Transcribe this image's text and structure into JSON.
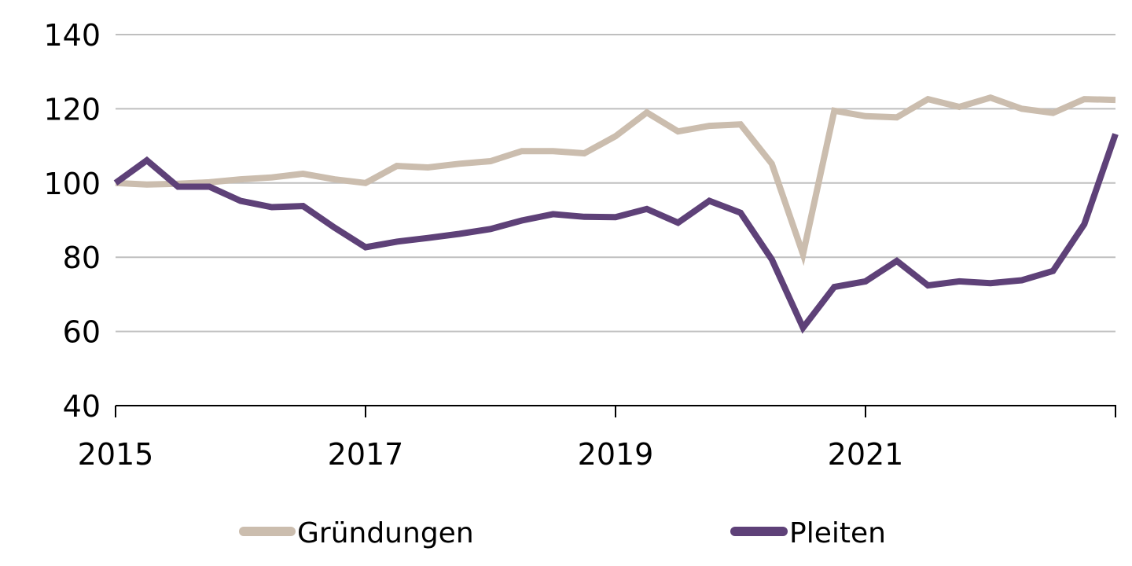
{
  "chart_data": {
    "type": "line",
    "title": "",
    "xlabel": "",
    "ylabel": "",
    "xlim": [
      2015,
      2023
    ],
    "ylim": [
      40,
      140
    ],
    "grid": true,
    "legend_position": "bottom",
    "y_ticks": [
      {
        "value": 40,
        "label": "40"
      },
      {
        "value": 60,
        "label": "60"
      },
      {
        "value": 80,
        "label": "80"
      },
      {
        "value": 100,
        "label": "100"
      },
      {
        "value": 120,
        "label": "120"
      },
      {
        "value": 140,
        "label": "140"
      }
    ],
    "x_ticks": [
      {
        "value": 2015,
        "label": "2015"
      },
      {
        "value": 2017,
        "label": "2017"
      },
      {
        "value": 2019,
        "label": "2019"
      },
      {
        "value": 2021,
        "label": "2021"
      },
      {
        "value": 2023,
        "label": ""
      }
    ],
    "x": [
      2015.0,
      2015.25,
      2015.5,
      2015.75,
      2016.0,
      2016.25,
      2016.5,
      2016.75,
      2017.0,
      2017.25,
      2017.5,
      2017.75,
      2018.0,
      2018.25,
      2018.5,
      2018.75,
      2019.0,
      2019.25,
      2019.5,
      2019.75,
      2020.0,
      2020.25,
      2020.5,
      2020.75,
      2021.0,
      2021.25,
      2021.5,
      2021.75,
      2022.0,
      2022.25,
      2022.5,
      2022.75,
      2023.0
    ],
    "series": [
      {
        "name": "Gründungen",
        "color": "#CBBDAE",
        "values": [
          100,
          99.6,
          99.8,
          100.2,
          101,
          101.5,
          102.5,
          101,
          100,
          104.6,
          104.2,
          105.2,
          105.9,
          108.6,
          108.6,
          108,
          112.6,
          119,
          113.9,
          115.4,
          115.8,
          105.2,
          80.8,
          119.5,
          118,
          117.7,
          122.6,
          120.5,
          123,
          120,
          118.9,
          122.6,
          122.4
        ]
      },
      {
        "name": "Pleiten",
        "color": "#5E4178",
        "values": [
          100,
          106.1,
          99,
          99,
          95.2,
          93.5,
          93.8,
          88,
          82.7,
          84.2,
          85.2,
          86.3,
          87.6,
          89.9,
          91.6,
          90.9,
          90.8,
          93,
          89.3,
          95.2,
          92,
          79.4,
          61,
          72,
          73.5,
          79,
          72.4,
          73.5,
          73,
          73.8,
          76.3,
          88.9,
          113.2
        ]
      }
    ]
  },
  "colors": {
    "gridline": "#BFBFBF",
    "axis": "#000000"
  }
}
